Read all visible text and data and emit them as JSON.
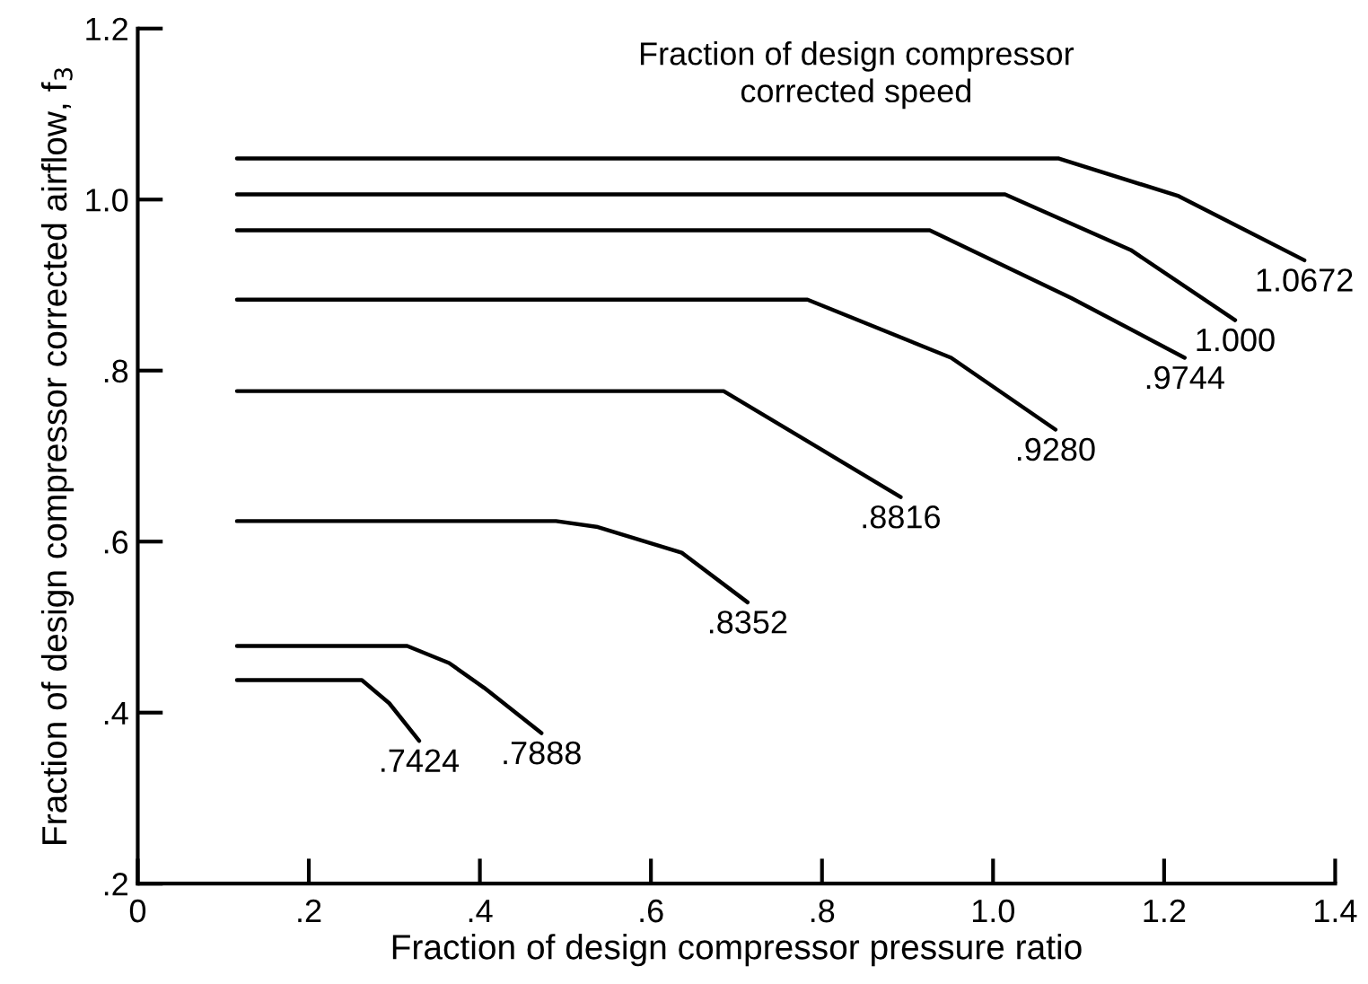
{
  "chart_data": {
    "type": "line",
    "xlabel": "Fraction of design compressor pressure ratio",
    "ylabel": "Fraction of design compressor corrected airflow, f$_{3}$",
    "xlim": [
      0,
      1.4
    ],
    "ylim": [
      0.2,
      1.2
    ],
    "xticks": [
      0,
      {
        "value": 0.2,
        "label": ".2"
      },
      {
        "value": 0.4,
        "label": ".4"
      },
      {
        "value": 0.6,
        "label": ".6"
      },
      {
        "value": 0.8,
        "label": ".8"
      },
      {
        "value": 1.0,
        "label": "1.0"
      },
      {
        "value": 1.2,
        "label": "1.2"
      },
      {
        "value": 1.4,
        "label": "1.4"
      }
    ],
    "yticks": [
      {
        "value": 0.2,
        "label": ".2"
      },
      {
        "value": 0.4,
        "label": ".4"
      },
      {
        "value": 0.6,
        "label": ".6"
      },
      {
        "value": 0.8,
        "label": ".8"
      },
      {
        "value": 1.0,
        "label": "1.0"
      },
      {
        "value": 1.2,
        "label": "1.2"
      }
    ],
    "grid": false,
    "legend": false,
    "marker": "none",
    "line_style": "solid",
    "series": [
      {
        "name": "1.0672",
        "color": "#000000",
        "x": [
          0.116,
          1.077,
          1.217,
          1.364
        ],
        "values": [
          1.048,
          1.048,
          1.004,
          0.929
        ]
      },
      {
        "name": "1.000",
        "color": "#000000",
        "x": [
          0.116,
          1.014,
          1.161,
          1.283
        ],
        "values": [
          1.006,
          1.006,
          0.941,
          0.859
        ]
      },
      {
        "name": ".9744",
        "color": "#000000",
        "x": [
          0.116,
          0.926,
          1.091,
          1.224
        ],
        "values": [
          0.964,
          0.964,
          0.885,
          0.815
        ]
      },
      {
        "name": ".9280",
        "color": "#000000",
        "x": [
          0.116,
          0.783,
          0.951,
          1.073
        ],
        "values": [
          0.883,
          0.883,
          0.815,
          0.731
        ]
      },
      {
        "name": ".8816",
        "color": "#000000",
        "x": [
          0.116,
          0.685,
          0.797,
          0.892
        ],
        "values": [
          0.776,
          0.776,
          0.709,
          0.652
        ]
      },
      {
        "name": ".8352",
        "color": "#000000",
        "x": [
          0.116,
          0.489,
          0.538,
          0.636,
          0.713
        ],
        "values": [
          0.624,
          0.624,
          0.617,
          0.587,
          0.529
        ]
      },
      {
        "name": ".7888",
        "color": "#000000",
        "x": [
          0.116,
          0.315,
          0.364,
          0.405,
          0.472
        ],
        "values": [
          0.478,
          0.478,
          0.458,
          0.429,
          0.376
        ]
      },
      {
        "name": ".7424",
        "color": "#000000",
        "x": [
          0.116,
          0.262,
          0.294,
          0.329
        ],
        "values": [
          0.438,
          0.438,
          0.411,
          0.367
        ]
      }
    ],
    "annotations": [
      "Fraction of design compressor\ncorrected speed"
    ]
  }
}
